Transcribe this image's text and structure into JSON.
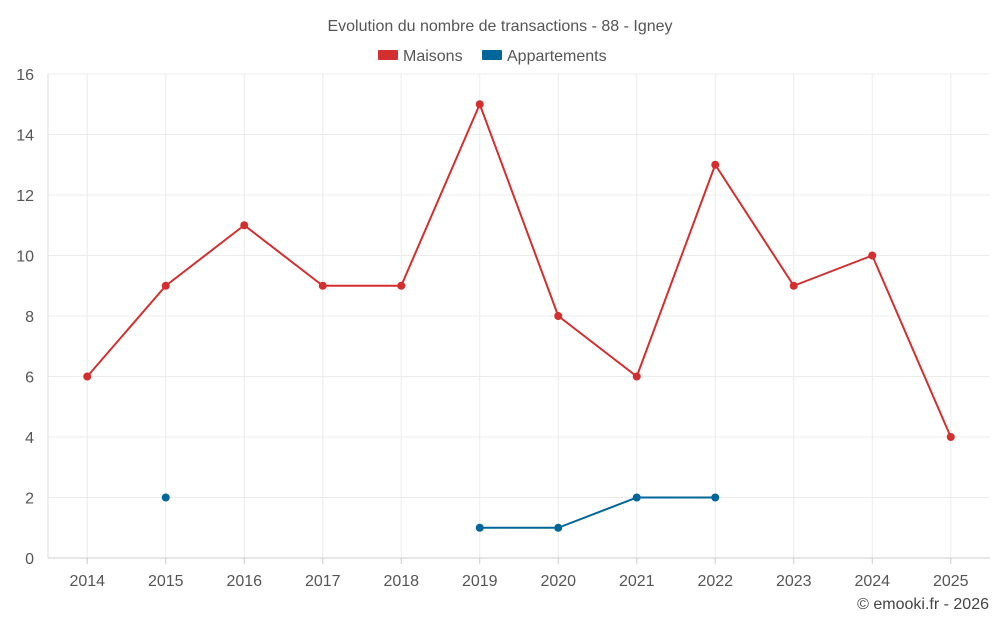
{
  "chart_data": {
    "type": "line",
    "title": "Evolution du nombre de transactions - 88 - Igney",
    "categories": [
      "2014",
      "2015",
      "2016",
      "2017",
      "2018",
      "2019",
      "2020",
      "2021",
      "2022",
      "2023",
      "2024",
      "2025"
    ],
    "ylim": [
      0,
      16
    ],
    "yticks": [
      0,
      2,
      4,
      6,
      8,
      10,
      12,
      14,
      16
    ],
    "grid": true,
    "legend_position": "top-center",
    "series": [
      {
        "name": "Maisons",
        "color": "#d32f2f",
        "values": [
          6,
          9,
          11,
          9,
          9,
          15,
          8,
          6,
          13,
          9,
          10,
          4
        ]
      },
      {
        "name": "Appartements",
        "color": "#01669a",
        "values": [
          null,
          2,
          null,
          null,
          null,
          1,
          1,
          2,
          2,
          null,
          null,
          null
        ]
      }
    ]
  },
  "credit": "© emooki.fr - 2026"
}
